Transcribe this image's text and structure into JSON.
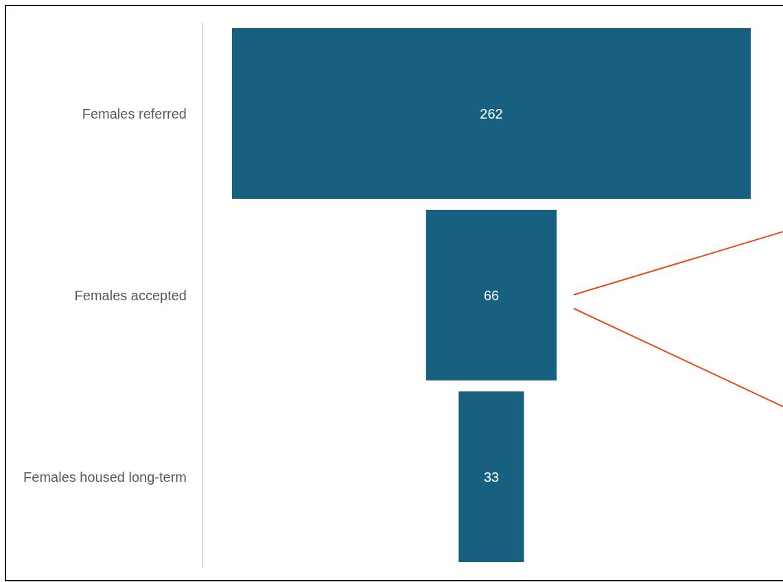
{
  "chart_data": {
    "type": "other",
    "categories": [
      "Females referred",
      "Females accepted",
      "Females housed long-term"
    ],
    "values": [
      262,
      66,
      33
    ],
    "color": "#17607f",
    "data_labels": true
  }
}
